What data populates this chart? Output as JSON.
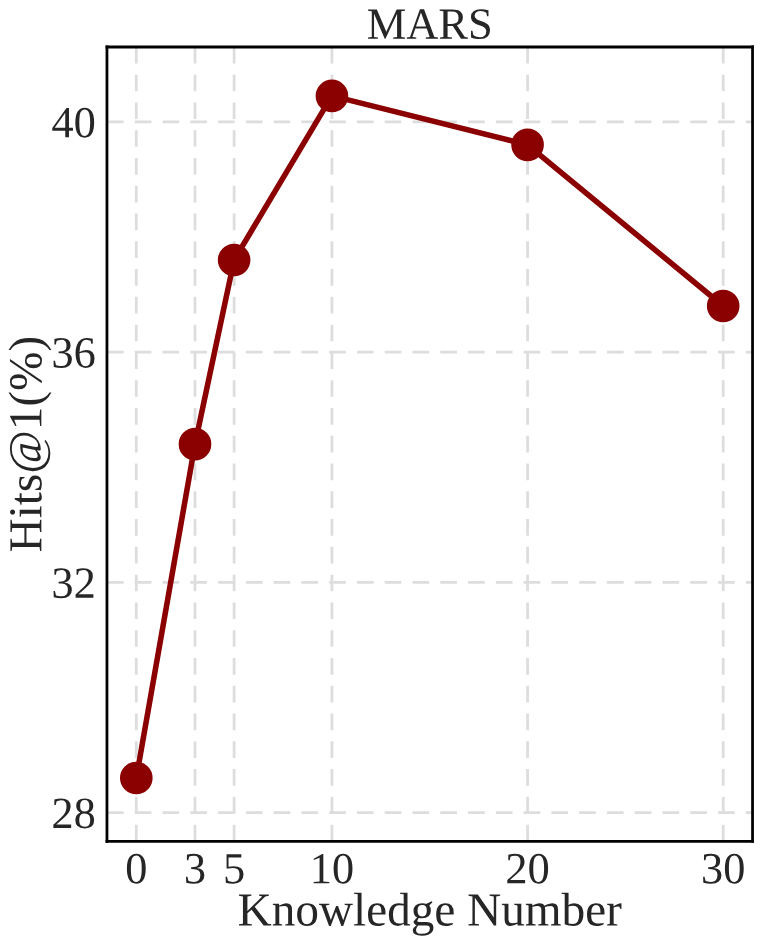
{
  "chart_data": {
    "type": "line",
    "title": "MARS",
    "xlabel": "Knowledge Number",
    "ylabel": "Hits@1(%)",
    "x": [
      0,
      3,
      5,
      10,
      20,
      30
    ],
    "series": [
      {
        "color": "#8b0000",
        "values": [
          28.6,
          34.4,
          37.6,
          40.45,
          39.6,
          36.8
        ]
      }
    ],
    "xlim": [
      -1.5,
      31.5
    ],
    "xticks": [
      0,
      3,
      5,
      10,
      20,
      30
    ],
    "ylim": [
      27.5,
      41.3
    ],
    "yticks": [
      28,
      32,
      36,
      40
    ],
    "grid": true,
    "marker": "circle",
    "line_style": "solid"
  }
}
